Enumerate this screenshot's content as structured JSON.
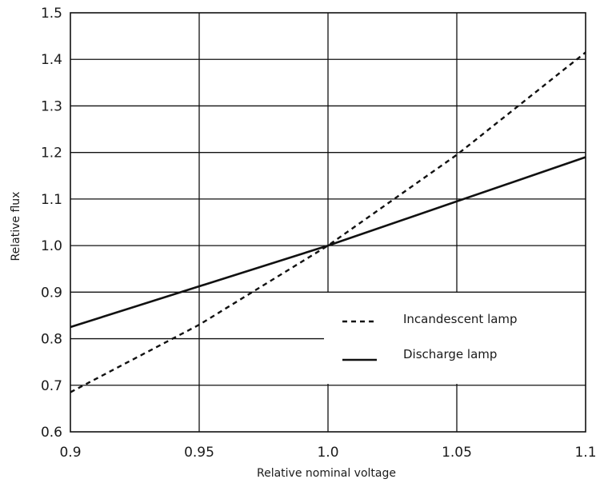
{
  "chart_data": {
    "type": "line",
    "title": "",
    "xlabel": "Relative nominal voltage",
    "ylabel": "Relative flux",
    "xlim": [
      0.9,
      1.1
    ],
    "ylim": [
      0.6,
      1.5
    ],
    "x_ticks": [
      "0.9",
      "0.95",
      "1.0",
      "1.05",
      "1.1"
    ],
    "y_ticks": [
      "0.6",
      "0.7",
      "0.8",
      "0.9",
      "1.0",
      "1.1",
      "1.2",
      "1.3",
      "1.4",
      "1.5"
    ],
    "grid": true,
    "legend_position": "lower-right",
    "series": [
      {
        "name": "Incandescent lamp",
        "style": "dashed",
        "color": "#111111",
        "x": [
          0.9,
          0.95,
          1.0,
          1.05,
          1.1
        ],
        "y": [
          0.685,
          0.83,
          1.0,
          1.195,
          1.415
        ]
      },
      {
        "name": "Discharge lamp",
        "style": "solid",
        "color": "#111111",
        "x": [
          0.9,
          1.0,
          1.1
        ],
        "y": [
          0.825,
          1.0,
          1.19
        ]
      }
    ]
  }
}
